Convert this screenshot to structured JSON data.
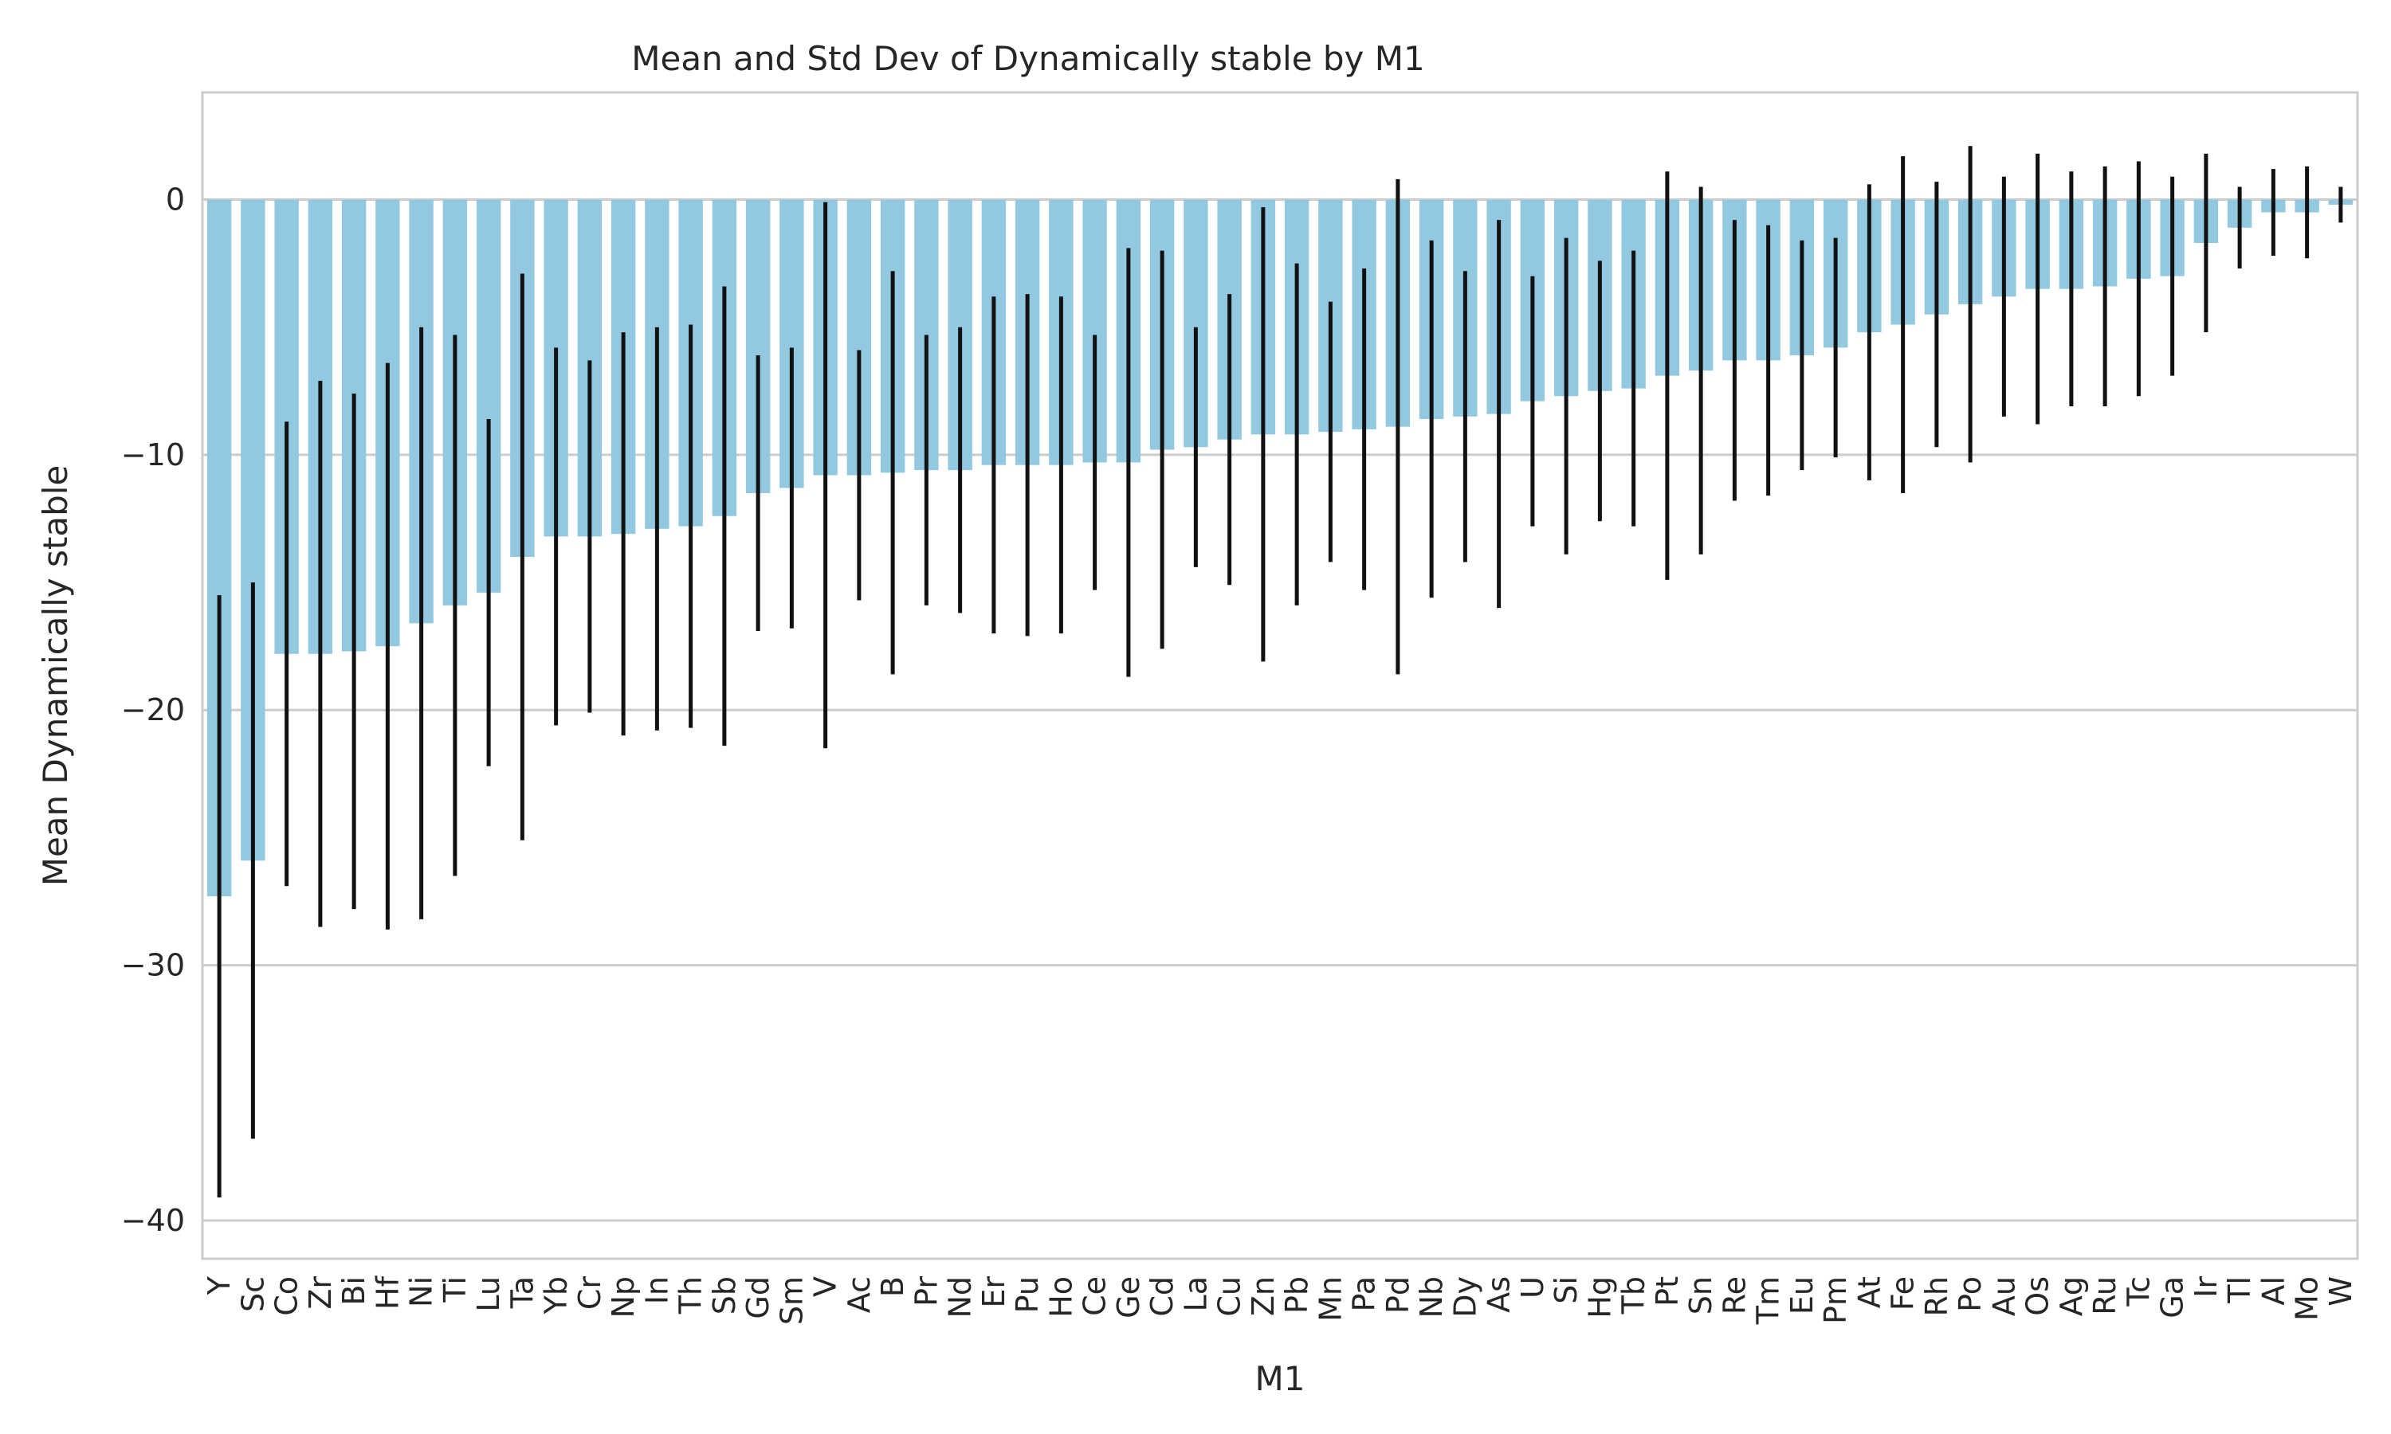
{
  "chart_data": {
    "type": "bar",
    "title": "Mean and Std Dev of Dynamically stable by M1",
    "xlabel": "M1",
    "ylabel": "Mean Dynamically stable",
    "ylim": [
      -41.5,
      4.2
    ],
    "yticks": [
      0,
      -10,
      -20,
      -30,
      -40
    ],
    "ytick_labels": [
      "0",
      "−10",
      "−20",
      "−30",
      "−40"
    ],
    "grid": true,
    "bar_color": "#92c9e1",
    "error_color": "#111111",
    "categories": [
      "Y",
      "Sc",
      "Co",
      "Zr",
      "Bi",
      "Hf",
      "Ni",
      "Ti",
      "Lu",
      "Ta",
      "Yb",
      "Cr",
      "Np",
      "In",
      "Th",
      "Sb",
      "Gd",
      "Sm",
      "V",
      "Ac",
      "B",
      "Pr",
      "Nd",
      "Er",
      "Pu",
      "Ho",
      "Ce",
      "Ge",
      "Cd",
      "La",
      "Cu",
      "Zn",
      "Pb",
      "Mn",
      "Pa",
      "Pd",
      "Nb",
      "Dy",
      "As",
      "U",
      "Si",
      "Hg",
      "Tb",
      "Pt",
      "Sn",
      "Re",
      "Tm",
      "Eu",
      "Pm",
      "At",
      "Fe",
      "Rh",
      "Po",
      "Au",
      "Os",
      "Ag",
      "Ru",
      "Tc",
      "Ga",
      "Ir",
      "Tl",
      "Al",
      "Mo",
      "W"
    ],
    "values": [
      -27.3,
      -25.9,
      -17.8,
      -17.8,
      -17.7,
      -17.5,
      -16.6,
      -15.9,
      -15.4,
      -14.0,
      -13.2,
      -13.2,
      -13.1,
      -12.9,
      -12.8,
      -12.4,
      -11.5,
      -11.3,
      -10.8,
      -10.8,
      -10.7,
      -10.6,
      -10.6,
      -10.4,
      -10.4,
      -10.4,
      -10.3,
      -10.3,
      -9.8,
      -9.7,
      -9.4,
      -9.2,
      -9.2,
      -9.1,
      -9.0,
      -8.9,
      -8.6,
      -8.5,
      -8.4,
      -7.9,
      -7.7,
      -7.5,
      -7.4,
      -6.9,
      -6.7,
      -6.3,
      -6.3,
      -6.1,
      -5.8,
      -5.2,
      -4.9,
      -4.5,
      -4.1,
      -3.8,
      -3.5,
      -3.5,
      -3.4,
      -3.1,
      -3.0,
      -1.7,
      -1.1,
      -0.5,
      -0.5,
      -0.2
    ],
    "std": [
      11.8,
      10.9,
      9.1,
      10.7,
      10.1,
      11.1,
      11.6,
      10.6,
      6.8,
      11.1,
      7.4,
      6.9,
      7.9,
      7.9,
      7.9,
      9.0,
      5.4,
      5.5,
      10.7,
      4.9,
      7.9,
      5.3,
      5.6,
      6.6,
      6.7,
      6.6,
      5.0,
      8.4,
      7.8,
      4.7,
      5.7,
      8.9,
      6.7,
      5.1,
      6.3,
      9.7,
      7.0,
      5.7,
      7.6,
      4.9,
      6.2,
      5.1,
      5.4,
      8.0,
      7.2,
      5.5,
      5.3,
      4.5,
      4.3,
      5.8,
      6.6,
      5.2,
      6.2,
      4.7,
      5.3,
      4.6,
      4.7,
      4.6,
      3.9,
      3.5,
      1.6,
      1.7,
      1.8,
      0.7
    ]
  }
}
